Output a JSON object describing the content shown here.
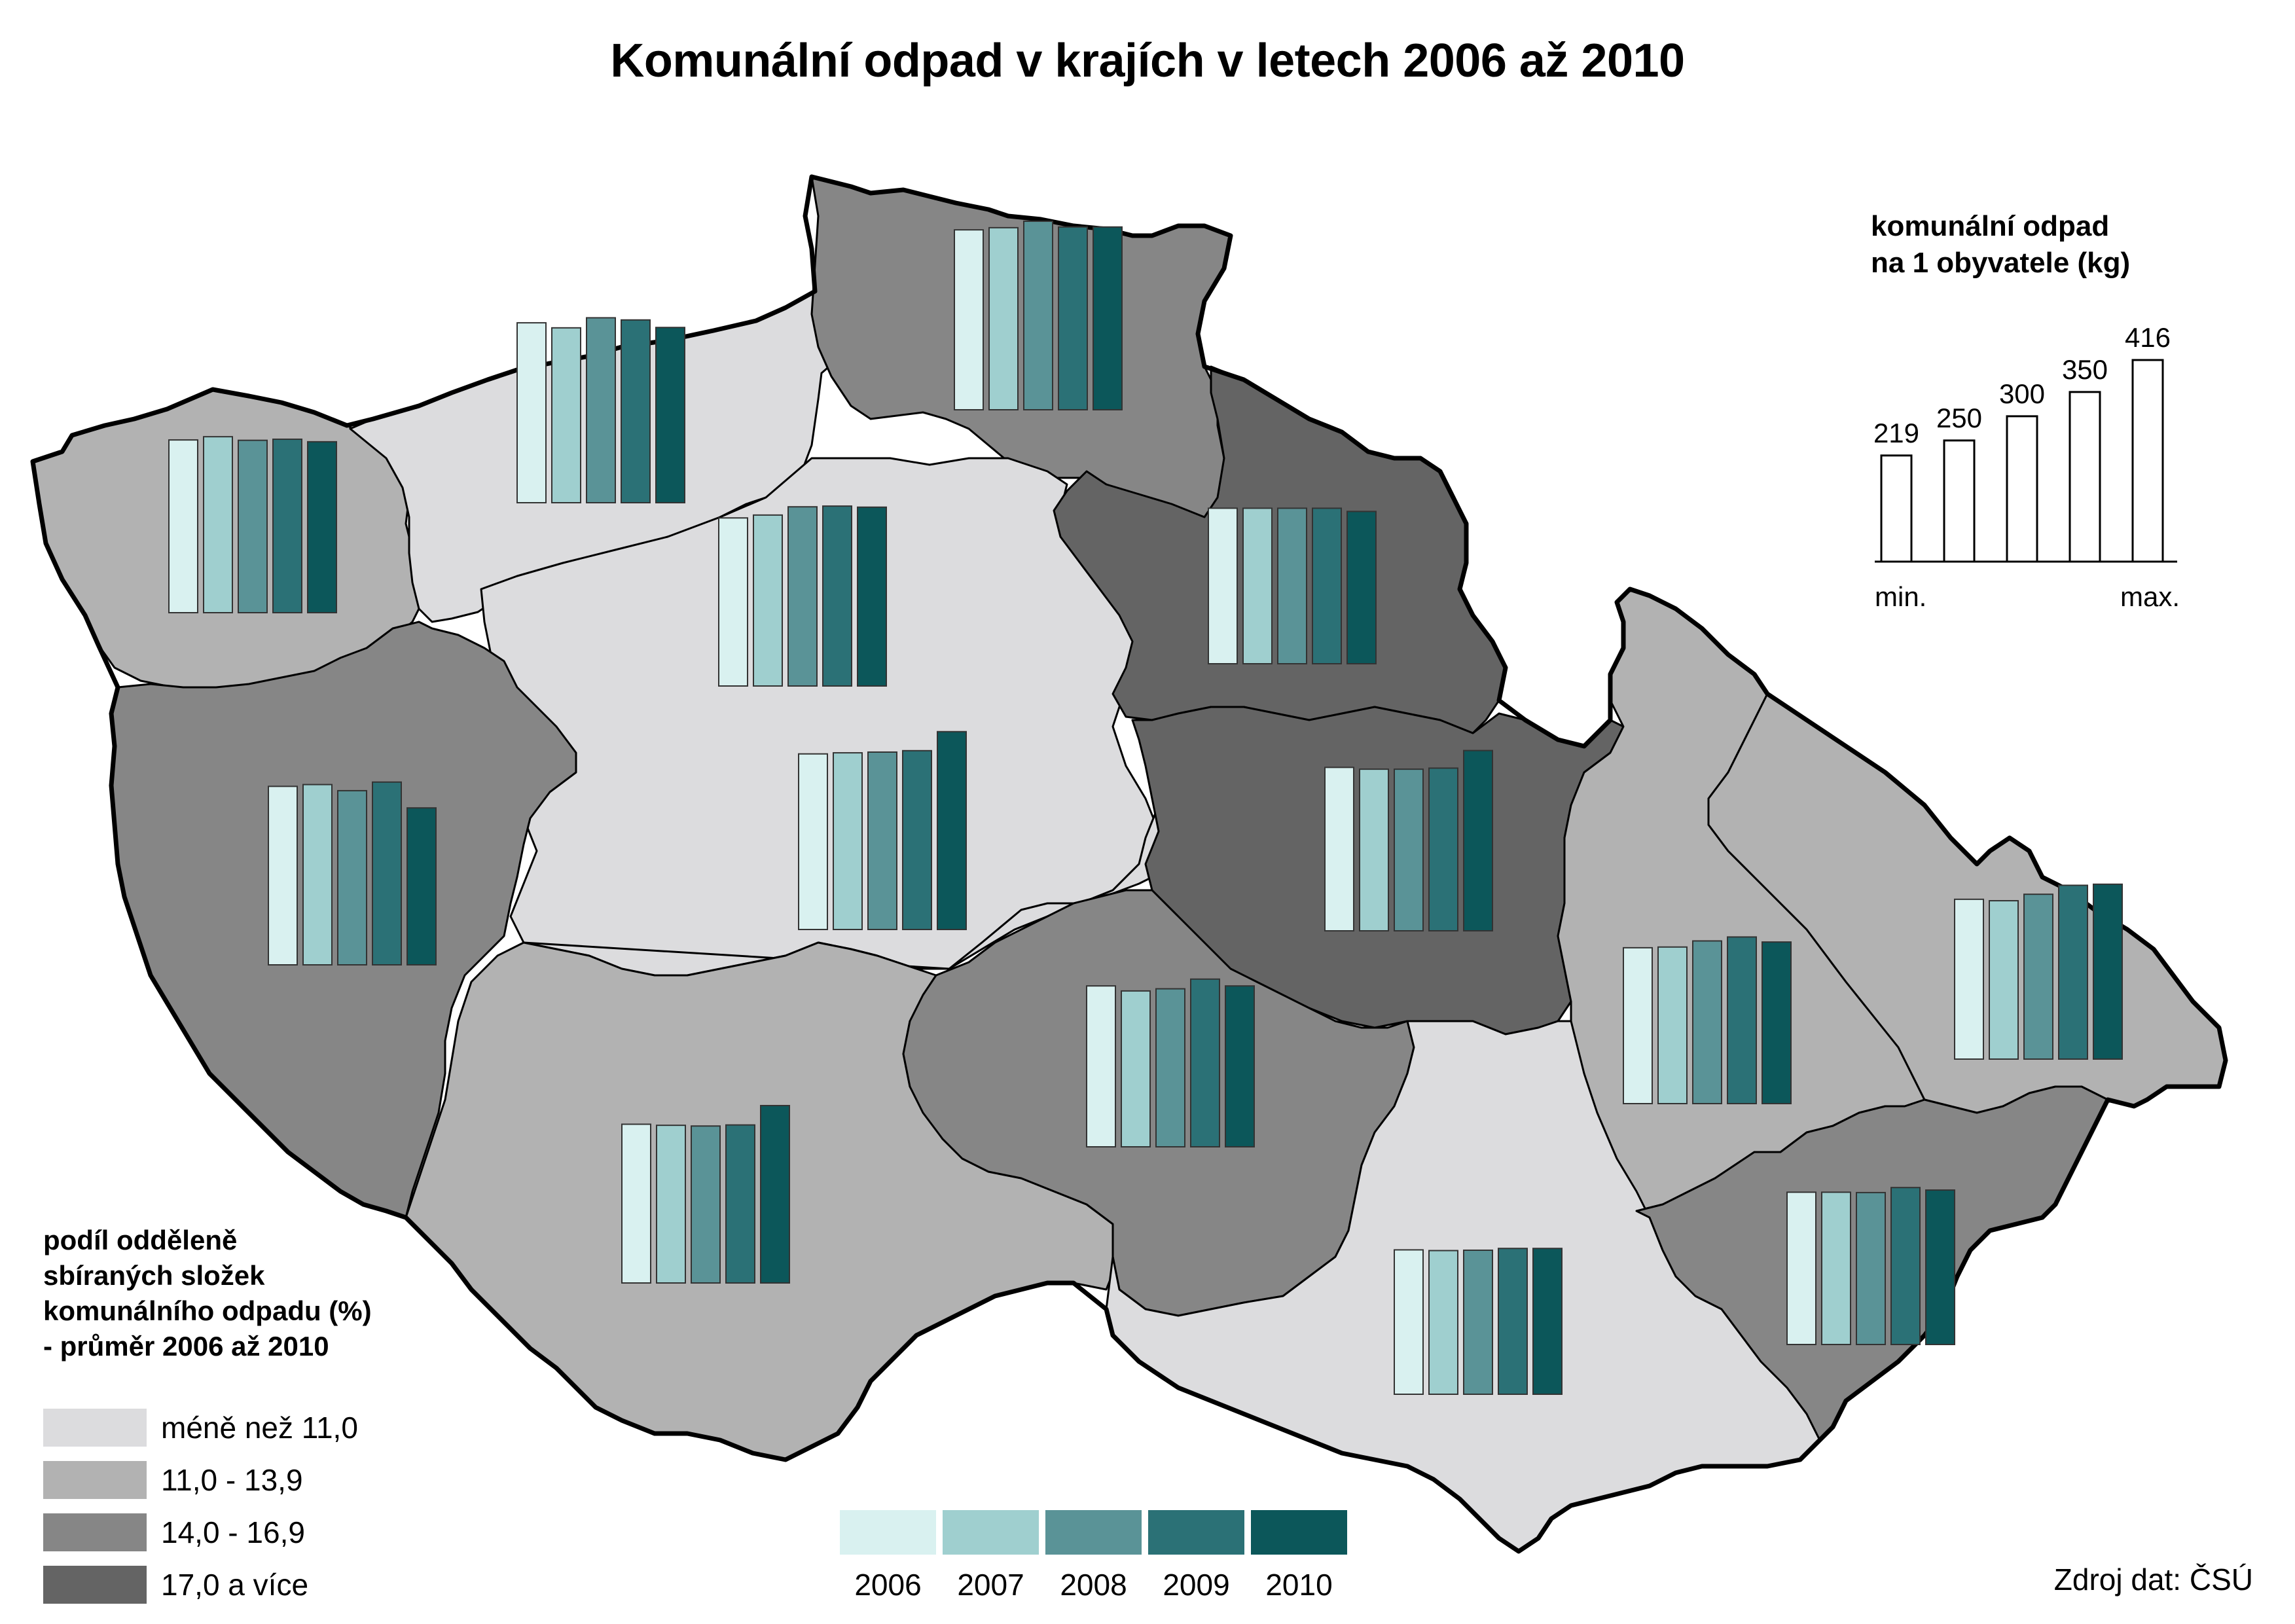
{
  "title": "Komunální odpad v krajích v letech 2006 až 2010",
  "legend": {
    "title_lines": [
      "podíl odděleně",
      "sbíraných složek",
      "komunálního odpadu (%)",
      "- průměr 2006 až 2010"
    ],
    "classes": [
      {
        "label": "méně než 11,0",
        "color": "#dcdcde"
      },
      {
        "label": "11,0 - 13,9",
        "color": "#b2b2b2"
      },
      {
        "label": "14,0 - 16,9",
        "color": "#868686"
      },
      {
        "label": "17,0 a více",
        "color": "#646464"
      }
    ]
  },
  "years": [
    {
      "label": "2006",
      "color": "#d9f1f0"
    },
    {
      "label": "2007",
      "color": "#9fcfcf"
    },
    {
      "label": "2008",
      "color": "#5a9397"
    },
    {
      "label": "2009",
      "color": "#2b7176"
    },
    {
      "label": "2010",
      "color": "#0c575a"
    }
  ],
  "reference_chart": {
    "title_lines": [
      "komunální odpad",
      "na 1 obyvatele (kg)"
    ],
    "values": [
      219,
      250,
      300,
      350,
      416
    ],
    "value_labels": [
      "219",
      "250",
      "300",
      "350",
      "416"
    ],
    "min_label": "min.",
    "max_label": "max."
  },
  "chart_data": {
    "type": "bar",
    "categories": [
      "2006",
      "2007",
      "2008",
      "2009",
      "2010"
    ],
    "series": [
      {
        "values": [
          310,
          319,
          309,
          312,
          305
        ],
        "class": 1
      },
      {
        "values": [
          330,
          316,
          344,
          338,
          317
        ],
        "class": 0
      },
      {
        "values": [
          330,
          336,
          354,
          338,
          338
        ],
        "class": 2
      },
      {
        "values": [
          297,
          305,
          328,
          330,
          327
        ],
        "class": 0
      },
      {
        "values": [
          262,
          262,
          262,
          262,
          253
        ],
        "class": 3
      },
      {
        "values": [
          326,
          331,
          314,
          338,
          266
        ],
        "class": 2
      },
      {
        "values": [
          318,
          321,
          323,
          327,
          380
        ],
        "class": 0
      },
      {
        "values": [
          284,
          279,
          279,
          282,
          331
        ],
        "class": 3
      },
      {
        "values": [
          271,
          268,
          266,
          269,
          323
        ],
        "class": 1
      },
      {
        "values": [
          277,
          263,
          269,
          296,
          277
        ],
        "class": 2
      },
      {
        "values": [
          263,
          265,
          282,
          293,
          279
        ],
        "class": 1
      },
      {
        "values": [
          274,
          270,
          288,
          313,
          316
        ],
        "class": 1
      },
      {
        "values": [
          231,
          229,
          230,
          235,
          235
        ],
        "class": 0
      },
      {
        "values": [
          253,
          253,
          252,
          266,
          259
        ],
        "class": 2
      }
    ]
  },
  "source": "Zdroj dat: ČSÚ"
}
